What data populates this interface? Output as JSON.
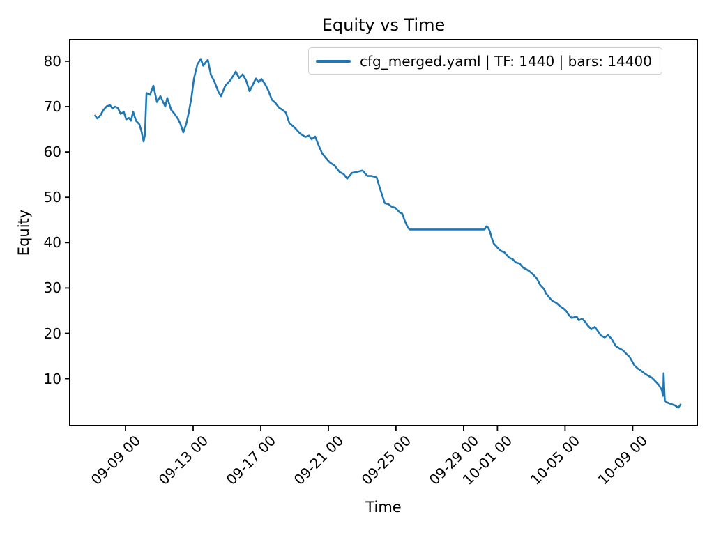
{
  "chart_data": {
    "type": "line",
    "title": "Equity vs Time",
    "xlabel": "Time",
    "ylabel": "Equity",
    "grid": false,
    "legend_position": "upper right",
    "axes_color": "#000000",
    "background_color": "#ffffff",
    "x_unit": "day number from Sep 1 (values > 30 are October dates)",
    "xlim": [
      5.7,
      42.82
    ],
    "ylim": [
      -0.35,
      84.75
    ],
    "x_ticks": [
      {
        "t": 9,
        "label": "09-09 00"
      },
      {
        "t": 13,
        "label": "09-13 00"
      },
      {
        "t": 17,
        "label": "09-17 00"
      },
      {
        "t": 21,
        "label": "09-21 00"
      },
      {
        "t": 25,
        "label": "09-25 00"
      },
      {
        "t": 29,
        "label": "09-29 00"
      },
      {
        "t": 31,
        "label": "10-01 00"
      },
      {
        "t": 35,
        "label": "10-05 00"
      },
      {
        "t": 39,
        "label": "10-09 00"
      }
    ],
    "y_ticks": [
      10,
      20,
      30,
      40,
      50,
      60,
      70,
      80
    ],
    "series": [
      {
        "name": "cfg_merged.yaml | TF: 1440 | bars: 14400",
        "color": "#1f77b4",
        "points": [
          [
            7.2,
            68.0
          ],
          [
            7.33,
            67.4
          ],
          [
            7.52,
            68.1
          ],
          [
            7.7,
            69.3
          ],
          [
            7.9,
            70.1
          ],
          [
            8.09,
            70.3
          ],
          [
            8.22,
            69.6
          ],
          [
            8.38,
            70.0
          ],
          [
            8.55,
            69.7
          ],
          [
            8.71,
            68.4
          ],
          [
            8.9,
            68.8
          ],
          [
            9.04,
            67.2
          ],
          [
            9.2,
            67.5
          ],
          [
            9.33,
            66.9
          ],
          [
            9.45,
            68.9
          ],
          [
            9.62,
            66.9
          ],
          [
            9.82,
            66.1
          ],
          [
            9.95,
            64.5
          ],
          [
            10.07,
            62.3
          ],
          [
            10.15,
            63.8
          ],
          [
            10.24,
            73.0
          ],
          [
            10.45,
            72.6
          ],
          [
            10.65,
            74.6
          ],
          [
            10.86,
            71.0
          ],
          [
            11.06,
            72.3
          ],
          [
            11.35,
            70.0
          ],
          [
            11.47,
            71.9
          ],
          [
            11.7,
            69.3
          ],
          [
            11.9,
            68.4
          ],
          [
            12.1,
            67.3
          ],
          [
            12.25,
            66.2
          ],
          [
            12.42,
            64.3
          ],
          [
            12.6,
            66.3
          ],
          [
            12.75,
            68.8
          ],
          [
            12.9,
            72.0
          ],
          [
            13.05,
            76.2
          ],
          [
            13.25,
            79.3
          ],
          [
            13.45,
            80.5
          ],
          [
            13.6,
            79.0
          ],
          [
            13.75,
            79.8
          ],
          [
            13.87,
            80.3
          ],
          [
            14.05,
            77.0
          ],
          [
            14.25,
            75.6
          ],
          [
            14.5,
            73.2
          ],
          [
            14.65,
            72.3
          ],
          [
            14.9,
            74.6
          ],
          [
            15.2,
            75.8
          ],
          [
            15.52,
            77.7
          ],
          [
            15.72,
            76.3
          ],
          [
            15.93,
            77.1
          ],
          [
            16.13,
            75.8
          ],
          [
            16.34,
            73.4
          ],
          [
            16.55,
            75.0
          ],
          [
            16.71,
            76.2
          ],
          [
            16.88,
            75.4
          ],
          [
            17.04,
            76.1
          ],
          [
            17.25,
            75.0
          ],
          [
            17.45,
            73.5
          ],
          [
            17.66,
            71.5
          ],
          [
            17.87,
            70.8
          ],
          [
            18.07,
            69.8
          ],
          [
            18.28,
            69.3
          ],
          [
            18.48,
            68.7
          ],
          [
            18.69,
            66.4
          ],
          [
            19.02,
            65.3
          ],
          [
            19.31,
            64.1
          ],
          [
            19.64,
            63.3
          ],
          [
            19.85,
            63.6
          ],
          [
            20.01,
            62.8
          ],
          [
            20.22,
            63.4
          ],
          [
            20.42,
            61.5
          ],
          [
            20.63,
            59.7
          ],
          [
            20.84,
            58.7
          ],
          [
            21.08,
            57.7
          ],
          [
            21.37,
            57.0
          ],
          [
            21.66,
            55.6
          ],
          [
            21.91,
            55.1
          ],
          [
            22.11,
            54.1
          ],
          [
            22.4,
            55.4
          ],
          [
            22.69,
            55.6
          ],
          [
            23.02,
            55.9
          ],
          [
            23.31,
            54.7
          ],
          [
            23.56,
            54.7
          ],
          [
            23.85,
            54.4
          ],
          [
            24.09,
            51.5
          ],
          [
            24.34,
            48.7
          ],
          [
            24.55,
            48.5
          ],
          [
            24.75,
            47.9
          ],
          [
            24.96,
            47.7
          ],
          [
            25.21,
            46.7
          ],
          [
            25.37,
            46.4
          ],
          [
            25.49,
            45.1
          ],
          [
            25.7,
            43.3
          ],
          [
            25.82,
            42.9
          ],
          [
            27.0,
            42.9
          ],
          [
            28.5,
            42.9
          ],
          [
            30.24,
            42.9
          ],
          [
            30.35,
            43.6
          ],
          [
            30.45,
            43.3
          ],
          [
            30.55,
            42.5
          ],
          [
            30.65,
            41.2
          ],
          [
            30.78,
            39.8
          ],
          [
            30.98,
            39.0
          ],
          [
            31.19,
            38.2
          ],
          [
            31.4,
            37.9
          ],
          [
            31.69,
            36.7
          ],
          [
            31.89,
            36.4
          ],
          [
            32.1,
            35.6
          ],
          [
            32.31,
            35.4
          ],
          [
            32.51,
            34.5
          ],
          [
            32.72,
            34.1
          ],
          [
            32.92,
            33.6
          ],
          [
            33.13,
            32.9
          ],
          [
            33.33,
            32.1
          ],
          [
            33.54,
            30.6
          ],
          [
            33.75,
            29.8
          ],
          [
            33.87,
            28.8
          ],
          [
            34.16,
            27.5
          ],
          [
            34.28,
            27.1
          ],
          [
            34.49,
            26.7
          ],
          [
            34.7,
            26.0
          ],
          [
            34.9,
            25.5
          ],
          [
            35.07,
            24.9
          ],
          [
            35.23,
            24.0
          ],
          [
            35.4,
            23.4
          ],
          [
            35.69,
            23.7
          ],
          [
            35.81,
            22.9
          ],
          [
            36.02,
            23.2
          ],
          [
            36.22,
            22.4
          ],
          [
            36.35,
            21.7
          ],
          [
            36.55,
            20.9
          ],
          [
            36.76,
            21.4
          ],
          [
            36.92,
            20.6
          ],
          [
            37.13,
            19.5
          ],
          [
            37.34,
            19.1
          ],
          [
            37.54,
            19.6
          ],
          [
            37.75,
            18.8
          ],
          [
            37.87,
            18.0
          ],
          [
            38.0,
            17.2
          ],
          [
            38.2,
            16.7
          ],
          [
            38.41,
            16.3
          ],
          [
            38.62,
            15.5
          ],
          [
            38.82,
            14.8
          ],
          [
            38.99,
            13.7
          ],
          [
            39.11,
            12.9
          ],
          [
            39.32,
            12.2
          ],
          [
            39.52,
            11.7
          ],
          [
            39.73,
            11.1
          ],
          [
            39.94,
            10.6
          ],
          [
            40.14,
            10.2
          ],
          [
            40.35,
            9.4
          ],
          [
            40.55,
            8.6
          ],
          [
            40.72,
            7.5
          ],
          [
            40.8,
            6.2
          ],
          [
            40.83,
            11.2
          ],
          [
            40.9,
            5.2
          ],
          [
            41.0,
            4.8
          ],
          [
            41.2,
            4.5
          ],
          [
            41.5,
            4.1
          ],
          [
            41.7,
            3.6
          ],
          [
            41.83,
            4.3
          ]
        ]
      }
    ]
  }
}
